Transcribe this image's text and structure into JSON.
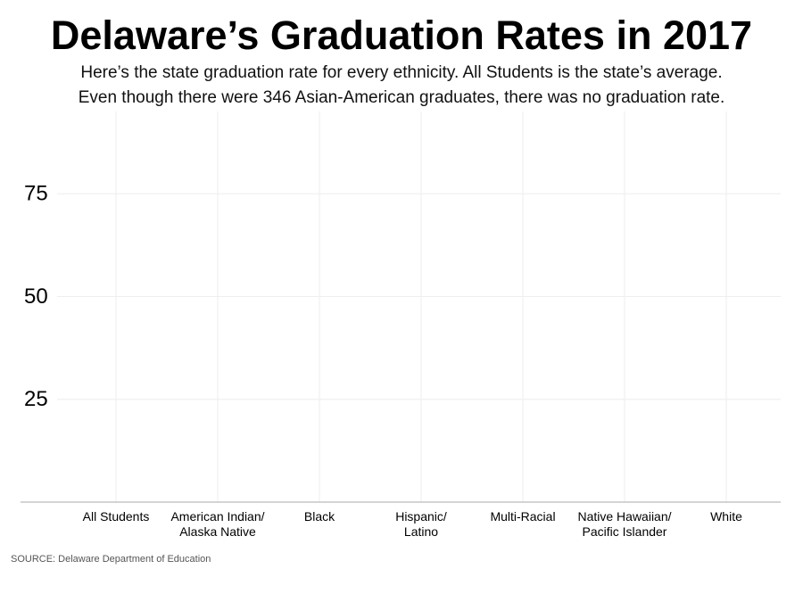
{
  "chart_data": {
    "type": "bar",
    "title": "Delaware’s Graduation Rates in 2017",
    "subtitle": [
      "Here’s the state graduation rate for every ethnicity. All Students is the state’s average.",
      "Even though there were 346 Asian-American graduates, there was no graduation rate."
    ],
    "categories": [
      "All Students",
      "American Indian/\nAlaska Native",
      "Black",
      "Hispanic/\nLatino",
      "Multi-Racial",
      "Native Hawaiian/\nPacific Islander",
      "White"
    ],
    "ylim": [
      0,
      95
    ],
    "yticks": [
      25,
      50,
      75
    ],
    "grid": true,
    "source": "SOURCE: Delaware Department of Education"
  }
}
